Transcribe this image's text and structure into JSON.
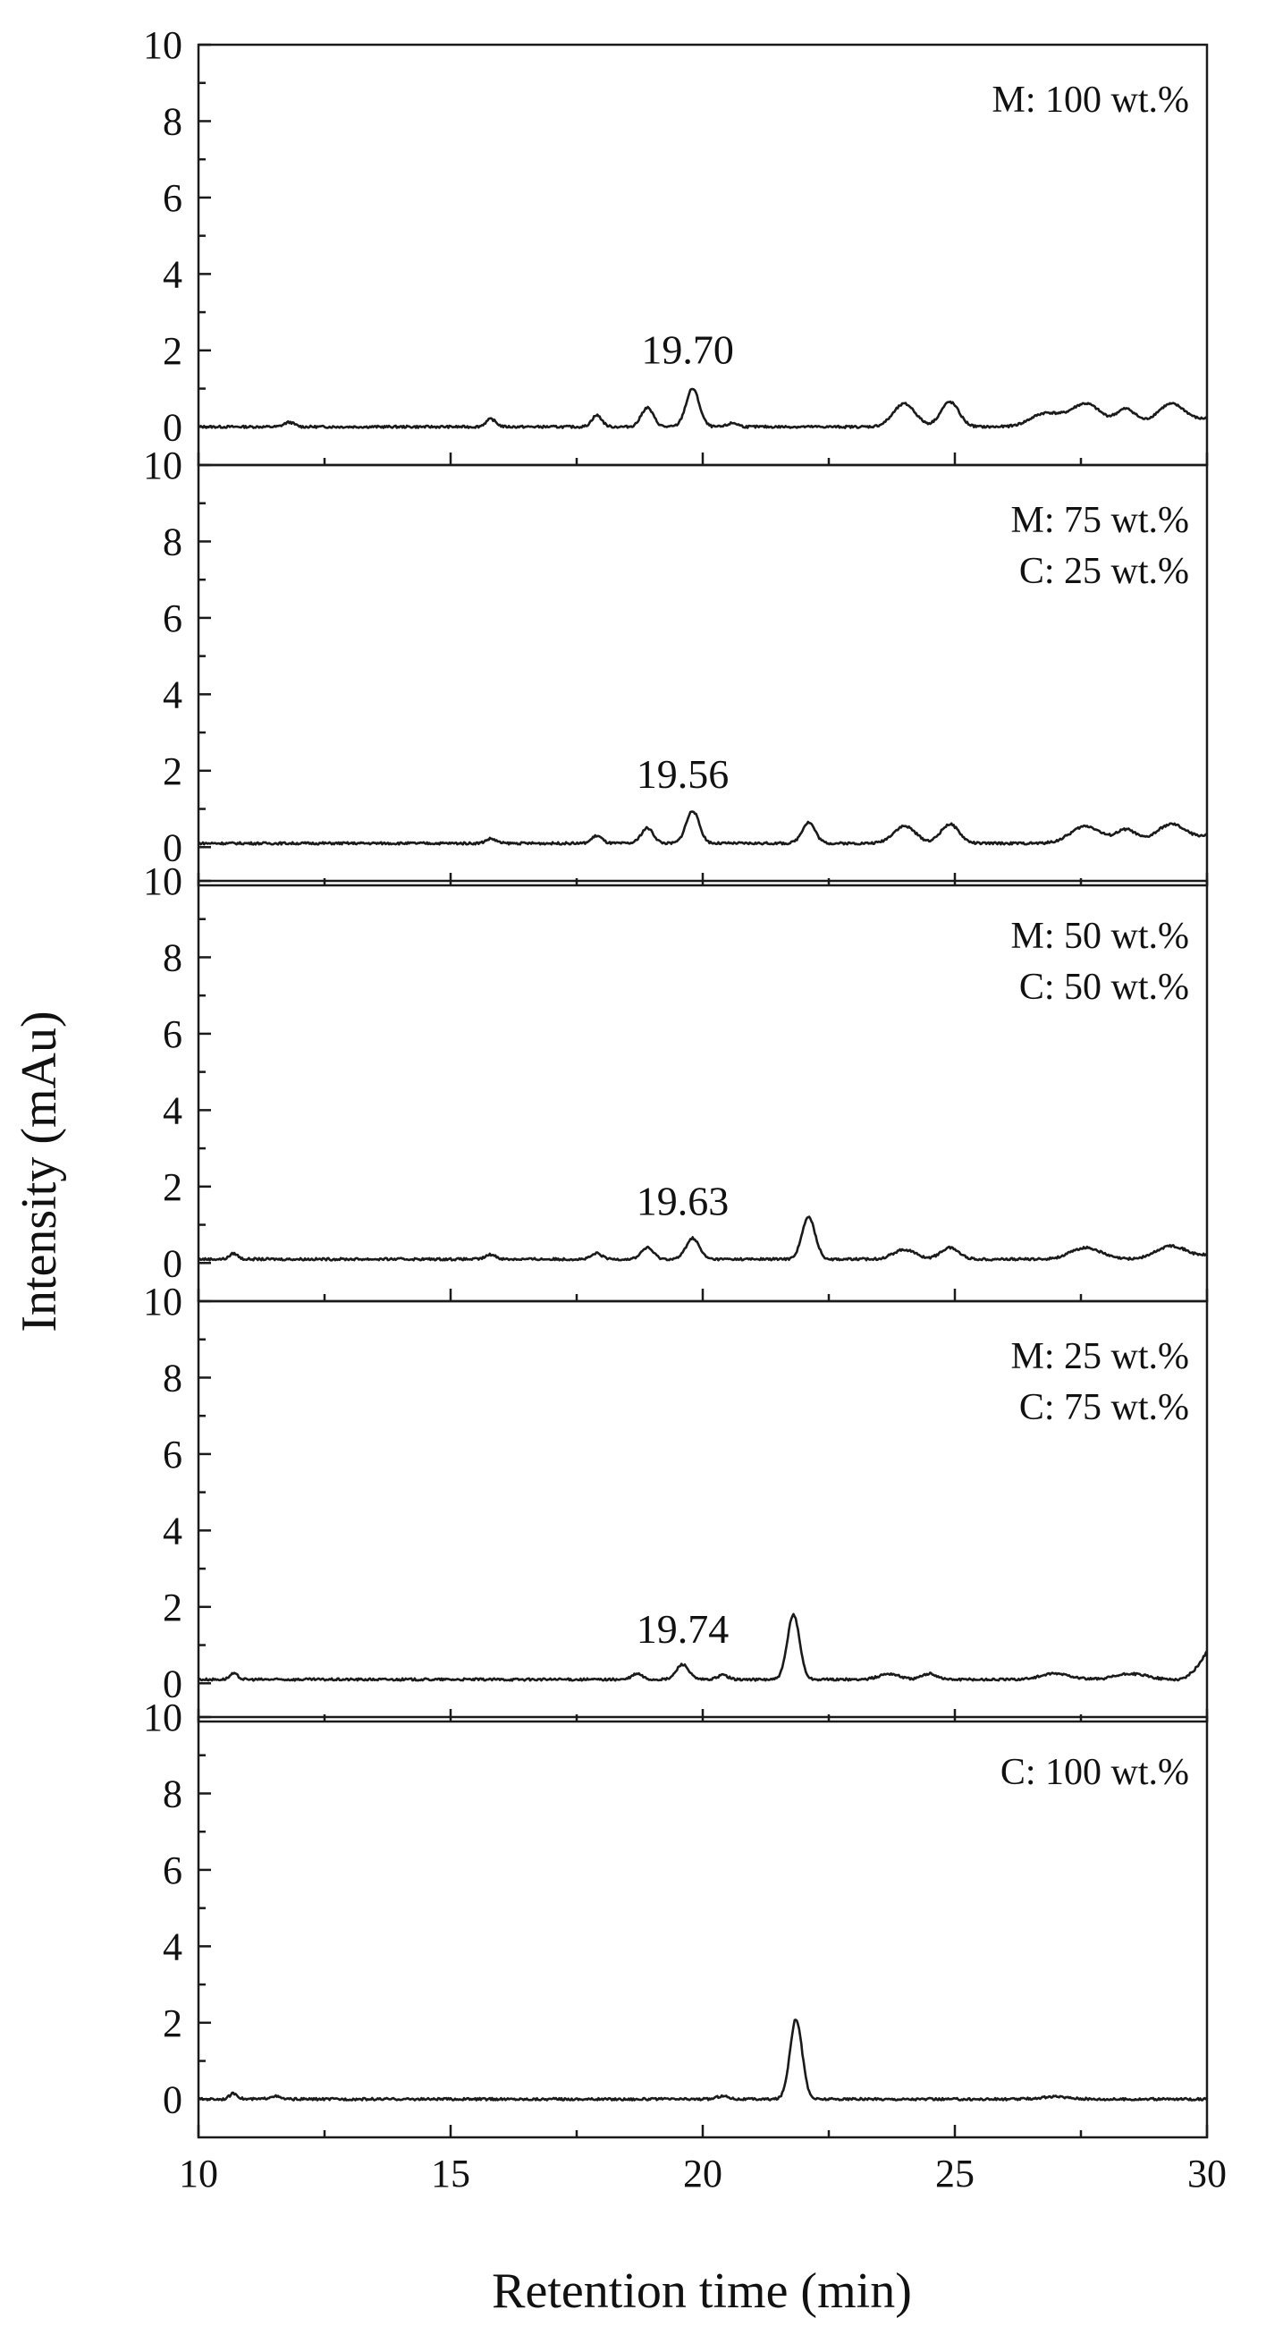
{
  "chart_data": {
    "type": "line",
    "ylabel": "Intensity (mAu)",
    "xlabel": "Retention time (min)",
    "xlim": [
      10,
      30
    ],
    "ylim": [
      -1,
      10
    ],
    "x_ticks": [
      "10",
      "15",
      "20",
      "25",
      "30"
    ],
    "y_ticks": [
      "0",
      "2",
      "4",
      "6",
      "8",
      "10"
    ],
    "grid": false,
    "panels": [
      {
        "labels": [
          "M: 100 wt.%"
        ],
        "peak_annotation": {
          "text": "19.70",
          "x": 19.7,
          "y": 1.0
        },
        "baseline": 0.0,
        "peaks": [
          [
            11.8,
            0.12,
            0.1
          ],
          [
            15.8,
            0.2,
            0.1
          ],
          [
            17.9,
            0.3,
            0.1
          ],
          [
            18.9,
            0.5,
            0.12
          ],
          [
            19.8,
            1.0,
            0.13
          ],
          [
            20.6,
            0.1,
            0.1
          ],
          [
            24.0,
            0.6,
            0.22
          ],
          [
            24.9,
            0.65,
            0.18
          ],
          [
            26.8,
            0.35,
            0.3
          ],
          [
            27.6,
            0.6,
            0.3
          ],
          [
            28.4,
            0.45,
            0.2
          ],
          [
            29.3,
            0.6,
            0.3
          ]
        ],
        "end_value": 0.2
      },
      {
        "labels": [
          "M: 75 wt.%",
          "C: 25 wt.%"
        ],
        "peak_annotation": {
          "text": "19.56",
          "x": 19.6,
          "y": 0.9
        },
        "baseline": 0.1,
        "peaks": [
          [
            15.8,
            0.12,
            0.1
          ],
          [
            17.9,
            0.2,
            0.1
          ],
          [
            18.9,
            0.4,
            0.12
          ],
          [
            19.8,
            0.85,
            0.13
          ],
          [
            22.1,
            0.55,
            0.13
          ],
          [
            24.0,
            0.45,
            0.22
          ],
          [
            24.9,
            0.5,
            0.18
          ],
          [
            27.6,
            0.45,
            0.3
          ],
          [
            28.4,
            0.35,
            0.2
          ],
          [
            29.3,
            0.5,
            0.3
          ]
        ],
        "end_value": 0.3
      },
      {
        "labels": [
          "M: 50 wt.%",
          "C: 50 wt.%"
        ],
        "peak_annotation": {
          "text": "19.63",
          "x": 19.6,
          "y": 0.6
        },
        "baseline": 0.1,
        "peaks": [
          [
            10.7,
            0.15,
            0.08
          ],
          [
            15.8,
            0.12,
            0.1
          ],
          [
            17.9,
            0.15,
            0.1
          ],
          [
            18.9,
            0.3,
            0.12
          ],
          [
            19.8,
            0.55,
            0.13
          ],
          [
            22.1,
            1.1,
            0.13
          ],
          [
            24.0,
            0.25,
            0.22
          ],
          [
            24.9,
            0.3,
            0.18
          ],
          [
            27.6,
            0.3,
            0.3
          ],
          [
            29.3,
            0.35,
            0.3
          ]
        ],
        "end_value": 0.2
      },
      {
        "labels": [
          "M: 25 wt.%",
          "C: 75 wt.%"
        ],
        "peak_annotation": {
          "text": "19.74",
          "x": 19.6,
          "y": 0.4
        },
        "baseline": 0.1,
        "peaks": [
          [
            10.7,
            0.15,
            0.08
          ],
          [
            18.7,
            0.15,
            0.1
          ],
          [
            19.6,
            0.4,
            0.12
          ],
          [
            20.4,
            0.12,
            0.1
          ],
          [
            21.8,
            1.7,
            0.12
          ],
          [
            23.7,
            0.15,
            0.2
          ],
          [
            24.5,
            0.15,
            0.15
          ],
          [
            27.0,
            0.15,
            0.3
          ],
          [
            28.5,
            0.15,
            0.3
          ]
        ],
        "end_value": 0.85
      },
      {
        "labels": [
          "C: 100 wt.%"
        ],
        "peak_annotation": null,
        "baseline": 0.0,
        "peaks": [
          [
            10.7,
            0.15,
            0.08
          ],
          [
            11.5,
            0.08,
            0.1
          ],
          [
            20.4,
            0.08,
            0.12
          ],
          [
            21.85,
            2.1,
            0.12
          ],
          [
            27.0,
            0.06,
            0.3
          ]
        ],
        "end_value": 0.0
      }
    ]
  }
}
